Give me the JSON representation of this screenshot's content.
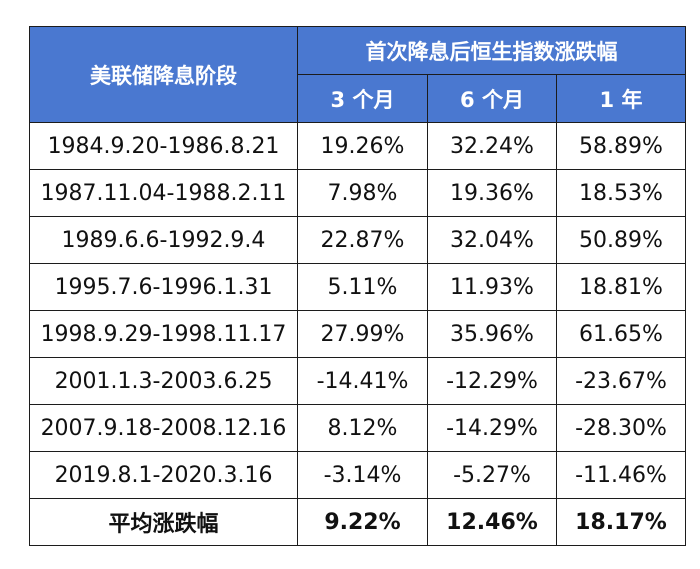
{
  "table": {
    "header": {
      "stage_label": "美联储降息阶段",
      "group_label": "首次降息后恒生指数涨跌幅",
      "sub_labels": [
        "3 个月",
        "6 个月",
        "1 年"
      ]
    },
    "rows": [
      [
        "1984.9.20-1986.8.21",
        "19.26%",
        "32.24%",
        "58.89%"
      ],
      [
        "1987.11.04-1988.2.11",
        "7.98%",
        "19.36%",
        "18.53%"
      ],
      [
        "1989.6.6-1992.9.4",
        "22.87%",
        "32.04%",
        "50.89%"
      ],
      [
        "1995.7.6-1996.1.31",
        "5.11%",
        "11.93%",
        "18.81%"
      ],
      [
        "1998.9.29-1998.11.17",
        "27.99%",
        "35.96%",
        "61.65%"
      ],
      [
        "2001.1.3-2003.6.25",
        "-14.41%",
        "-12.29%",
        "-23.67%"
      ],
      [
        "2007.9.18-2008.12.16",
        "8.12%",
        "-14.29%",
        "-28.30%"
      ],
      [
        "2019.8.1-2020.3.16",
        "-3.14%",
        "-5.27%",
        "-11.46%"
      ]
    ],
    "average": [
      "平均涨跌幅",
      "9.22%",
      "12.46%",
      "18.17%"
    ]
  },
  "colors": {
    "header_bg": "#4a78d0",
    "header_text": "#ffffff",
    "border": "#1c1c1c"
  }
}
